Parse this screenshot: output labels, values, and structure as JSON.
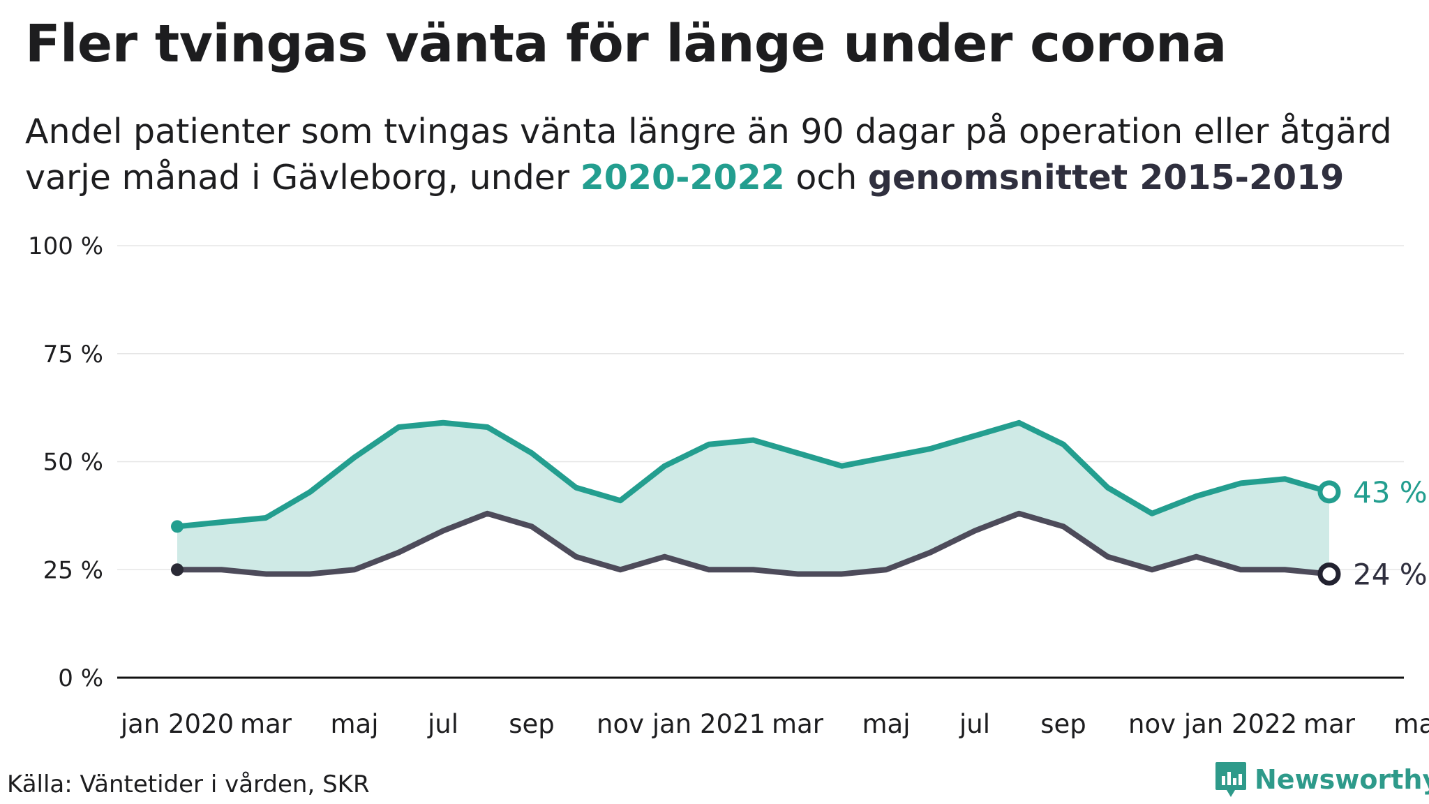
{
  "title": "Fler tvingas vänta för länge under corona",
  "subtitle": {
    "line1": "Andel patienter som tvingas vänta längre än 90 dagar på operation eller åtgärd",
    "line2_prefix": "varje månad i Gävleborg, under ",
    "highlight_current": "2020-2022",
    "middle": " och ",
    "highlight_avg": "genomsnittet 2015-2019"
  },
  "colors": {
    "current": "#239e8f",
    "average": "#4d4b5a",
    "fill": "#cfeae6",
    "endlabel_avg": "#2f2f3e"
  },
  "chart_data": {
    "type": "line",
    "y_ticks": [
      "0 %",
      "25 %",
      "50 %",
      "75 %",
      "100 %"
    ],
    "y_tick_values": [
      0,
      25,
      50,
      75,
      100
    ],
    "ylim": [
      0,
      100
    ],
    "x_range": [
      "2020-01",
      "2022-05"
    ],
    "x_ticks": [
      {
        "month": "2020-01",
        "label": "jan 2020"
      },
      {
        "month": "2020-03",
        "label": "mar"
      },
      {
        "month": "2020-05",
        "label": "maj"
      },
      {
        "month": "2020-07",
        "label": "jul"
      },
      {
        "month": "2020-09",
        "label": "sep"
      },
      {
        "month": "2020-11",
        "label": "nov"
      },
      {
        "month": "2021-01",
        "label": "jan 2021"
      },
      {
        "month": "2021-03",
        "label": "mar"
      },
      {
        "month": "2021-05",
        "label": "maj"
      },
      {
        "month": "2021-07",
        "label": "jul"
      },
      {
        "month": "2021-09",
        "label": "sep"
      },
      {
        "month": "2021-11",
        "label": "nov"
      },
      {
        "month": "2022-01",
        "label": "jan 2022"
      },
      {
        "month": "2022-03",
        "label": "mar"
      },
      {
        "month": "2022-05",
        "label": "maj"
      }
    ],
    "months": [
      "2020-01",
      "2020-02",
      "2020-03",
      "2020-04",
      "2020-05",
      "2020-06",
      "2020-07",
      "2020-08",
      "2020-09",
      "2020-10",
      "2020-11",
      "2020-12",
      "2021-01",
      "2021-02",
      "2021-03",
      "2021-04",
      "2021-05",
      "2021-06",
      "2021-07",
      "2021-08",
      "2021-09",
      "2021-10",
      "2021-11",
      "2021-12",
      "2022-01",
      "2022-02",
      "2022-03"
    ],
    "series": [
      {
        "key": "current",
        "values": [
          35,
          36,
          37,
          43,
          51,
          58,
          59,
          58,
          52,
          44,
          41,
          49,
          54,
          55,
          52,
          49,
          51,
          53,
          56,
          59,
          54,
          44,
          38,
          42,
          45,
          46,
          43
        ],
        "end_label": "43 %"
      },
      {
        "key": "average",
        "values": [
          25,
          25,
          24,
          24,
          25,
          29,
          34,
          38,
          35,
          28,
          25,
          28,
          25,
          25,
          24,
          24,
          25,
          29,
          34,
          38,
          35,
          28,
          25,
          28,
          25,
          25,
          24
        ],
        "end_label": "24 %"
      }
    ]
  },
  "source": "Källa: Väntetider i vården, SKR",
  "brand": "Newsworthy",
  "brand_icon": "newsworthy-logo-icon"
}
